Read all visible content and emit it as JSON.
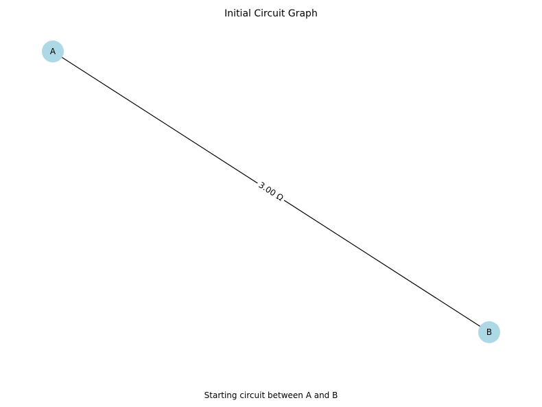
{
  "figure": {
    "title": "Initial Circuit Graph",
    "caption": "Starting circuit between A and B"
  },
  "graph": {
    "node_color": "#add8e6",
    "edge_color": "#000000",
    "nodes": [
      {
        "id": "A",
        "label": "A"
      },
      {
        "id": "B",
        "label": "B"
      }
    ],
    "edges": [
      {
        "from": "A",
        "to": "B",
        "label": "3.00 Ω"
      }
    ]
  }
}
